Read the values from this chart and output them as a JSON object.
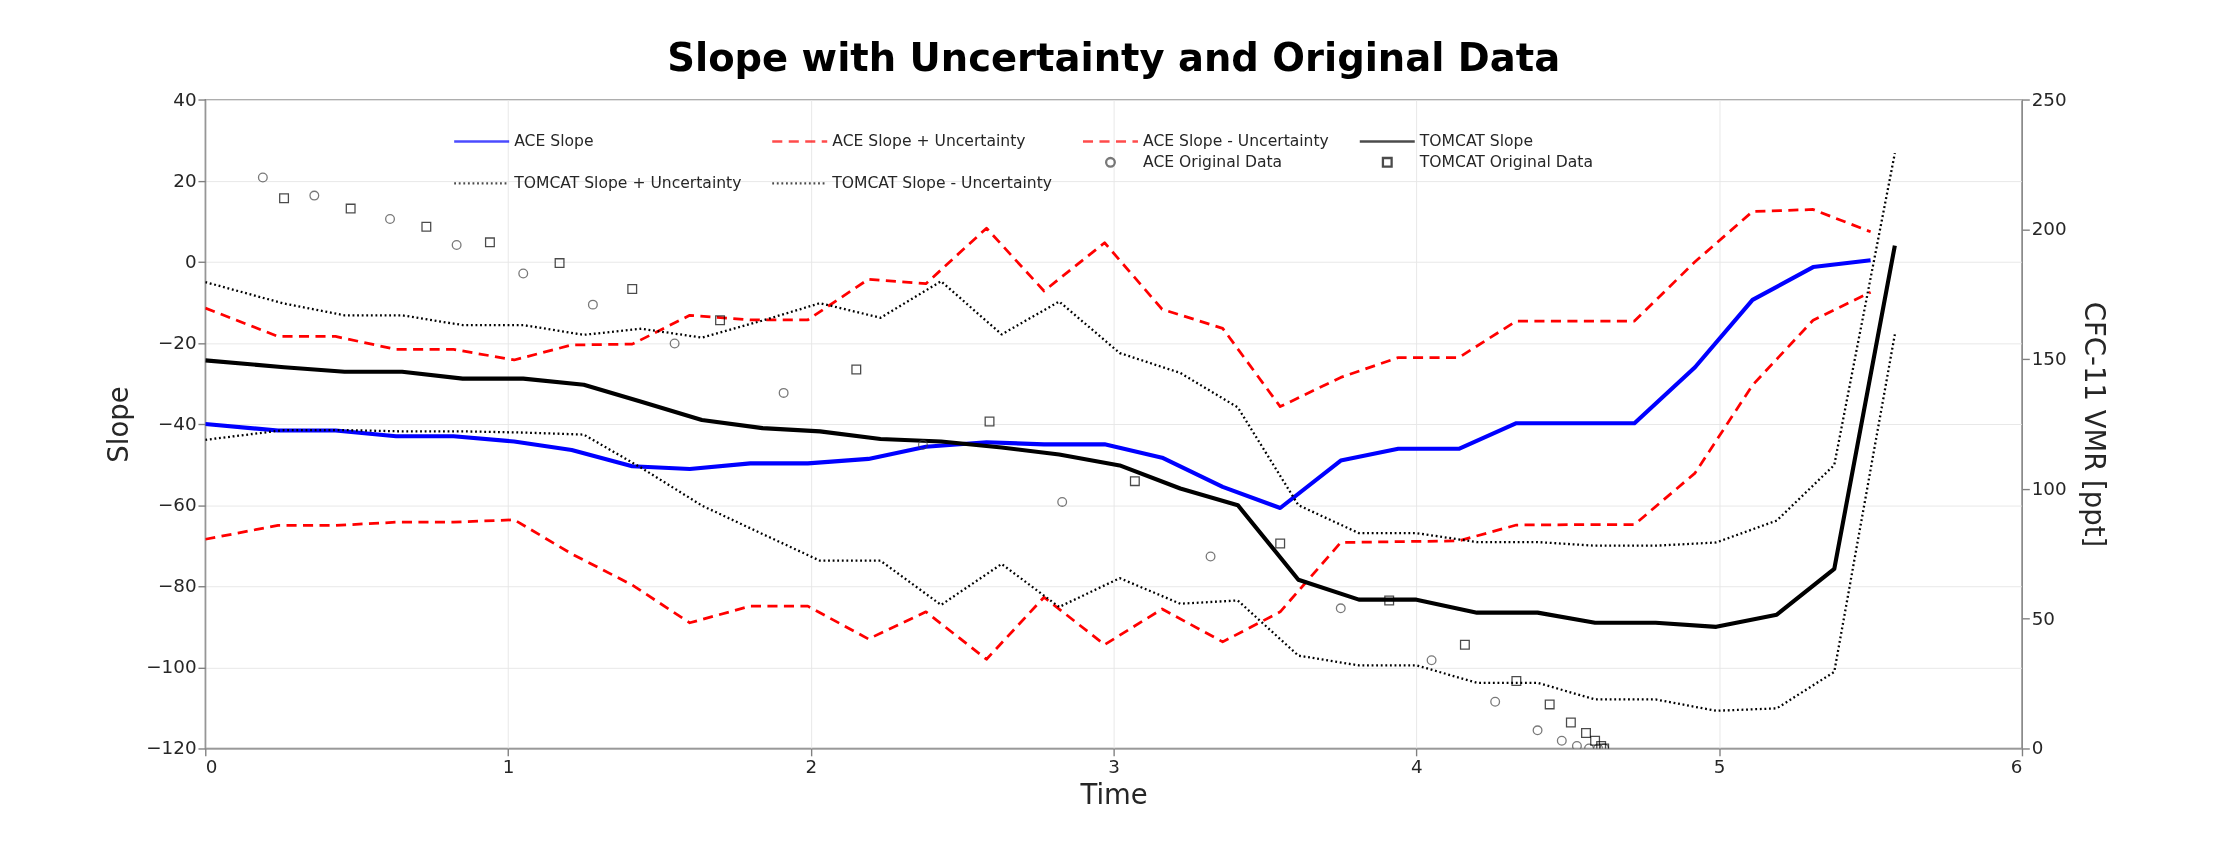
{
  "chart_data": {
    "type": "line",
    "title": "Slope with Uncertainty and Original Data",
    "xlabel": "Time",
    "ylabel": "Slope",
    "y2label": "CFC-11 VMR [ppt]",
    "xlim": [
      0,
      6
    ],
    "xticks": [
      0,
      1,
      2,
      3,
      4,
      5,
      6
    ],
    "ylim": [
      -120,
      40
    ],
    "yticks": [
      -120,
      -100,
      -80,
      -60,
      -40,
      -20,
      0,
      20,
      40
    ],
    "y2lim": [
      0,
      250
    ],
    "y2ticks": [
      0,
      50,
      100,
      150,
      200,
      250
    ],
    "grid": true,
    "legend": "top",
    "series": [
      {
        "name": "ACE Slope",
        "type": "line",
        "color": "#0000ff",
        "line_style": "solid",
        "x": [
          0,
          0.24,
          0.43,
          0.63,
          0.82,
          1.02,
          1.21,
          1.41,
          1.6,
          1.8,
          1.99,
          2.19,
          2.38,
          2.58,
          2.77,
          2.97,
          3.16,
          3.36,
          3.55,
          3.75,
          3.94,
          4.14,
          4.33,
          4.53,
          4.72,
          4.92,
          5.11,
          5.31,
          5.5
        ],
        "values": [
          -40,
          -41.6,
          -41.6,
          -43,
          -43,
          -44.3,
          -46.4,
          -50.4,
          -51.1,
          -49.7,
          -49.7,
          -48.6,
          -45.6,
          -44.5,
          -45,
          -45,
          -48.3,
          -55.5,
          -60.7,
          -49,
          -46.1,
          -46.1,
          -39.8,
          -39.8,
          -39.8,
          -26,
          -9.4,
          -1.3,
          0.4
        ]
      },
      {
        "name": "ACE Slope + Uncertainty",
        "type": "line",
        "color": "#ff0000",
        "line_style": "dashed",
        "x": [
          0,
          0.24,
          0.43,
          0.63,
          0.82,
          1.02,
          1.21,
          1.41,
          1.6,
          1.8,
          1.99,
          2.19,
          2.38,
          2.58,
          2.77,
          2.97,
          3.16,
          3.36,
          3.55,
          3.75,
          3.94,
          4.14,
          4.33,
          4.53,
          4.72,
          4.92,
          5.11,
          5.31,
          5.5
        ],
        "values": [
          -11.4,
          -18.4,
          -18.4,
          -21.6,
          -21.6,
          -24.2,
          -20.5,
          -20.3,
          -13.2,
          -14.3,
          -14.3,
          -4.3,
          -5.4,
          8.3,
          -7.2,
          4.7,
          -11.7,
          -16.4,
          -35.7,
          -28.5,
          -23.6,
          -23.6,
          -14.6,
          -14.6,
          -14.6,
          0,
          12.4,
          12.9,
          7.4
        ]
      },
      {
        "name": "ACE Slope - Uncertainty",
        "type": "line",
        "color": "#ff0000",
        "line_style": "dashed",
        "x": [
          0,
          0.24,
          0.43,
          0.63,
          0.82,
          1.02,
          1.21,
          1.41,
          1.6,
          1.8,
          1.99,
          2.19,
          2.38,
          2.58,
          2.77,
          2.97,
          3.16,
          3.36,
          3.55,
          3.75,
          3.94,
          4.14,
          4.33,
          4.53,
          4.72,
          4.92,
          5.11,
          5.31,
          5.5
        ],
        "values": [
          -68.4,
          -65,
          -65,
          -64.2,
          -64.2,
          -63.6,
          -72,
          -79.7,
          -89,
          -84.9,
          -84.9,
          -93,
          -86.3,
          -98,
          -82.7,
          -94.4,
          -85.6,
          -93.7,
          -86.3,
          -69.2,
          -69,
          -68.8,
          -64.9,
          -64.8,
          -64.8,
          -52.1,
          -30.4,
          -14.4,
          -7.5
        ]
      },
      {
        "name": "TOMCAT Slope",
        "type": "line",
        "color": "#000000",
        "line_style": "solid",
        "x": [
          0,
          0.26,
          0.46,
          0.65,
          0.85,
          1.05,
          1.25,
          1.44,
          1.64,
          1.84,
          2.03,
          2.23,
          2.43,
          2.63,
          2.82,
          3.02,
          3.22,
          3.41,
          3.61,
          3.81,
          4.0,
          4.2,
          4.4,
          4.59,
          4.79,
          4.99,
          5.19,
          5.38,
          5.58
        ],
        "values": [
          -24.3,
          -26,
          -27.1,
          -27.1,
          -28.8,
          -28.8,
          -30.3,
          -34.5,
          -39,
          -41,
          -41.8,
          -43.7,
          -44.3,
          -45.8,
          -47.5,
          -50.2,
          -55.9,
          -60,
          -78.4,
          -83.3,
          -83.3,
          -86.5,
          -86.5,
          -89,
          -89,
          -90,
          -87,
          -75.7,
          4.0
        ]
      },
      {
        "name": "TOMCAT Slope + Uncertainty",
        "type": "line",
        "color": "#000000",
        "line_style": "dotted",
        "x": [
          0,
          0.26,
          0.46,
          0.65,
          0.85,
          1.05,
          1.25,
          1.44,
          1.64,
          1.84,
          2.03,
          2.23,
          2.43,
          2.63,
          2.82,
          3.02,
          3.22,
          3.41,
          3.61,
          3.81,
          4.0,
          4.2,
          4.4,
          4.59,
          4.79,
          4.99,
          5.19,
          5.38,
          5.58
        ],
        "values": [
          -5,
          -10.3,
          -13.2,
          -13.2,
          -15.6,
          -15.6,
          -18,
          -16.5,
          -18.7,
          -14.5,
          -10.2,
          -13.8,
          -4.8,
          -17.9,
          -9.8,
          -22.5,
          -27.4,
          -35.9,
          -60,
          -66.9,
          -66.9,
          -69.1,
          -69.1,
          -70,
          -70,
          -69.2,
          -63.8,
          -50.1,
          26.8
        ]
      },
      {
        "name": "TOMCAT Slope - Uncertainty",
        "type": "line",
        "color": "#000000",
        "line_style": "dotted",
        "x": [
          0,
          0.26,
          0.46,
          0.65,
          0.85,
          1.05,
          1.25,
          1.44,
          1.64,
          1.84,
          2.03,
          2.23,
          2.43,
          2.63,
          2.82,
          3.02,
          3.22,
          3.41,
          3.61,
          3.81,
          4.0,
          4.2,
          4.4,
          4.59,
          4.79,
          4.99,
          5.19,
          5.38,
          5.58
        ],
        "values": [
          -43.9,
          -41.5,
          -41.5,
          -41.8,
          -41.8,
          -42.1,
          -42.6,
          -50.8,
          -60.1,
          -67.1,
          -73.7,
          -73.7,
          -84.6,
          -74.5,
          -85.1,
          -78,
          -84.3,
          -83.5,
          -97.1,
          -99.5,
          -99.5,
          -103.8,
          -103.8,
          -107.9,
          -107.9,
          -110.7,
          -110.1,
          -101.1,
          -17.9
        ]
      },
      {
        "name": "ACE Original Data",
        "type": "scatter",
        "axis": "y2",
        "color": "#404040",
        "marker": "circle",
        "x": [
          0.19,
          0.36,
          0.61,
          0.83,
          1.05,
          1.28,
          1.55,
          1.91,
          2.37,
          2.83,
          3.32,
          3.75,
          4.05,
          4.26,
          4.4,
          4.48,
          4.53,
          4.57,
          4.6,
          4.62
        ],
        "values": [
          220,
          213,
          204,
          194,
          183,
          171,
          156,
          137,
          117,
          95,
          74,
          54,
          34,
          18,
          7,
          3,
          1,
          0,
          0,
          0
        ]
      },
      {
        "name": "TOMCAT Original Data",
        "type": "scatter",
        "axis": "y2",
        "color": "#000000",
        "marker": "square",
        "x": [
          0.26,
          0.48,
          0.73,
          0.94,
          1.17,
          1.41,
          1.7,
          2.15,
          2.59,
          3.07,
          3.55,
          3.91,
          4.16,
          4.33,
          4.44,
          4.51,
          4.56,
          4.59,
          4.61,
          4.62
        ],
        "values": [
          212,
          208,
          201,
          195,
          187,
          177,
          165,
          146,
          126,
          103,
          79,
          57,
          40,
          26,
          17,
          10,
          6,
          3,
          1,
          0
        ]
      }
    ]
  }
}
